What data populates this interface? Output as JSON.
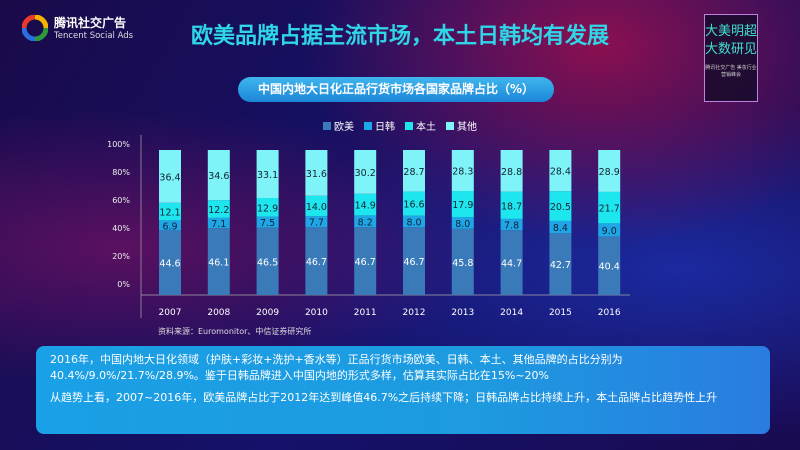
{
  "logo": {
    "name": "腾讯社交广告",
    "name_en": "Tencent Social Ads"
  },
  "title": "欧美品牌占据主流市场，本土日韩均有发展",
  "deco": {
    "line1": "大美明超",
    "line2": "大数研见",
    "sub": "腾讯社交广告 美妆行业营销峰会"
  },
  "chart_data": {
    "type": "bar",
    "stacked": true,
    "title": "中国内地大日化正品行货市场各国家品牌占比（%）",
    "categories": [
      "2007",
      "2008",
      "2009",
      "2010",
      "2011",
      "2012",
      "2013",
      "2014",
      "2015",
      "2016"
    ],
    "yticks": [
      "0%",
      "20%",
      "40%",
      "60%",
      "80%",
      "100%"
    ],
    "ylim": [
      0,
      100
    ],
    "legend_position": "top",
    "series": [
      {
        "name": "欧美",
        "color": "#3a7ab8",
        "values": [
          44.6,
          46.1,
          46.5,
          46.7,
          46.7,
          46.7,
          45.8,
          44.7,
          42.7,
          40.4
        ]
      },
      {
        "name": "日韩",
        "color": "#1ea6e6",
        "values": [
          6.9,
          7.1,
          7.5,
          7.7,
          8.2,
          8.0,
          8.0,
          7.8,
          8.4,
          9.0
        ]
      },
      {
        "name": "本土",
        "color": "#1de6ee",
        "values": [
          12.1,
          12.2,
          12.9,
          14.0,
          14.9,
          16.6,
          17.9,
          18.7,
          20.5,
          21.7
        ]
      },
      {
        "name": "其他",
        "color": "#7ef4f8",
        "values": [
          36.4,
          34.6,
          33.1,
          31.6,
          30.2,
          28.7,
          28.3,
          28.8,
          28.4,
          28.9
        ]
      }
    ],
    "source": "资料来源：Euromonitor、中信证券研究所"
  },
  "summary": {
    "p1": "2016年，中国内地大日化领域（护肤+彩妆+洗护+香水等）正品行货市场欧美、日韩、本土、其他品牌的占比分别为40.4%/9.0%/21.7%/28.9%。鉴于日韩品牌进入中国内地的形式多样，估算其实际占比在15%~20%",
    "p2": "从趋势上看，2007~2016年，欧美品牌占比于2012年达到峰值46.7%之后持续下降；日韩品牌占比持续上升，本土品牌占比趋势性上升"
  }
}
